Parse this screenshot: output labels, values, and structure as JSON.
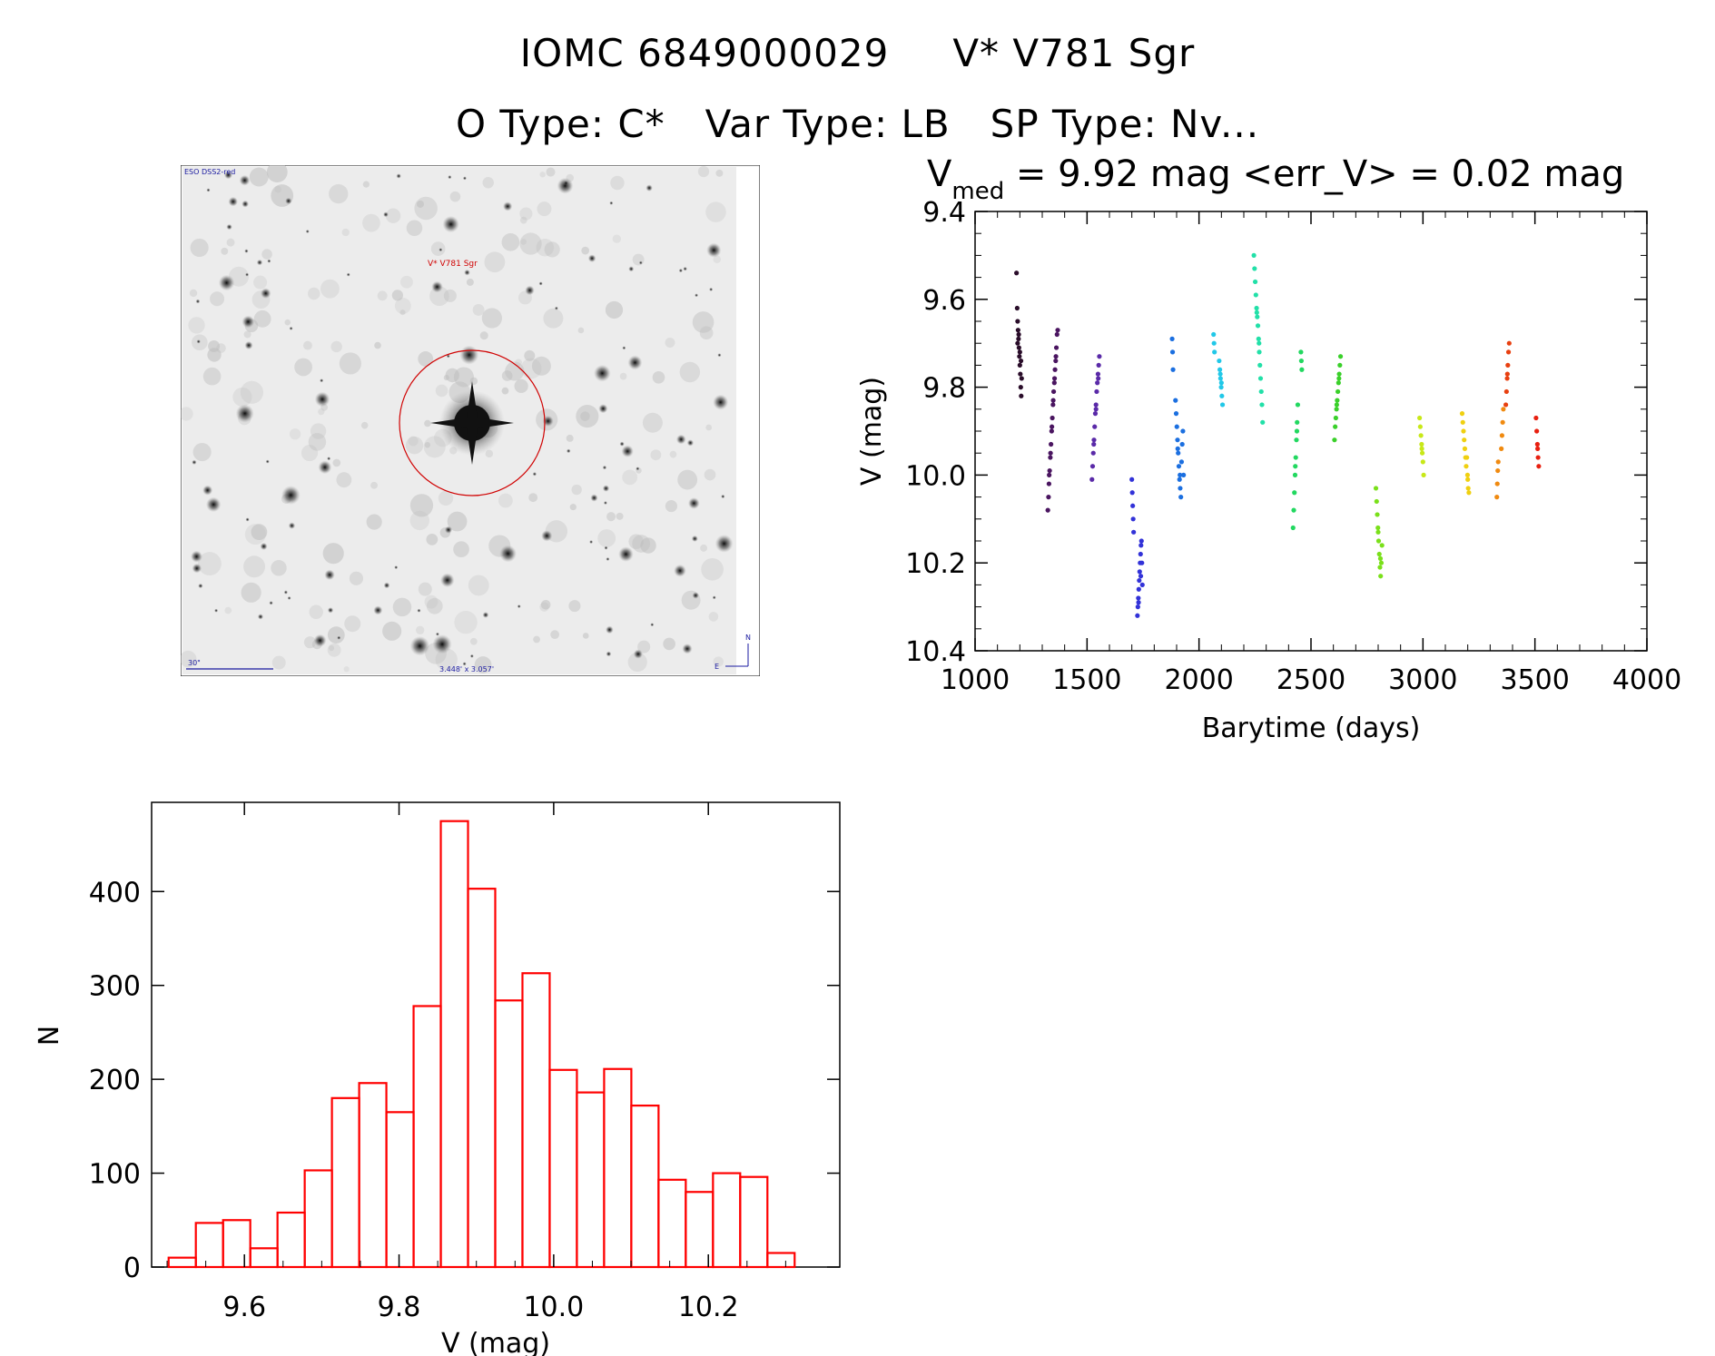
{
  "header": {
    "title_line1_a": "IOMC 6849000029",
    "title_line1_b": "V* V781 Sgr",
    "title_line2_a": "O Type: C*",
    "title_line2_b": "Var Type: LB",
    "title_line2_c": "SP Type: Nv..."
  },
  "finder": {
    "survey_label": "ESO DSS2-red",
    "object_label": "V* V781 Sgr",
    "scale_label": "30\"",
    "fov_label": "3.448' x 3.057'",
    "compass_n": "N",
    "compass_e": "E"
  },
  "chart_data": [
    {
      "type": "scatter",
      "title_prefix": "V",
      "title_sub": "med",
      "title_rest": " = 9.92 mag <err_V> = 0.02 mag",
      "xlabel": "Barytime (days)",
      "ylabel": "V (mag)",
      "xlim": [
        1000,
        4000
      ],
      "ylim": [
        10.4,
        9.4
      ],
      "y_inverted": true,
      "xticks": [
        "1000",
        "1500",
        "2000",
        "2500",
        "3000",
        "3500",
        "4000"
      ],
      "yticks": [
        "9.4",
        "9.6",
        "9.8",
        "10.0",
        "10.2",
        "10.4"
      ],
      "grid": false,
      "series": [
        {
          "color": "#2a0d2a",
          "points": [
            [
              1185,
              9.54
            ],
            [
              1188,
              9.62
            ],
            [
              1190,
              9.65
            ],
            [
              1192,
              9.67
            ],
            [
              1194,
              9.69
            ],
            [
              1196,
              9.71
            ],
            [
              1198,
              9.73
            ],
            [
              1200,
              9.75
            ],
            [
              1202,
              9.77
            ],
            [
              1204,
              9.8
            ],
            [
              1206,
              9.82
            ],
            [
              1208,
              9.78
            ],
            [
              1190,
              9.7
            ],
            [
              1195,
              9.68
            ],
            [
              1200,
              9.72
            ],
            [
              1205,
              9.74
            ]
          ]
        },
        {
          "color": "#4a1560",
          "points": [
            [
              1325,
              10.08
            ],
            [
              1328,
              10.05
            ],
            [
              1330,
              10.02
            ],
            [
              1333,
              9.99
            ],
            [
              1336,
              9.96
            ],
            [
              1339,
              9.93
            ],
            [
              1342,
              9.9
            ],
            [
              1345,
              9.87
            ],
            [
              1348,
              9.84
            ],
            [
              1351,
              9.81
            ],
            [
              1354,
              9.79
            ],
            [
              1357,
              9.76
            ],
            [
              1360,
              9.74
            ],
            [
              1363,
              9.71
            ],
            [
              1366,
              9.68
            ],
            [
              1369,
              9.67
            ],
            [
              1331,
              10.0
            ],
            [
              1337,
              9.95
            ],
            [
              1343,
              9.89
            ],
            [
              1349,
              9.83
            ],
            [
              1355,
              9.78
            ],
            [
              1361,
              9.73
            ]
          ]
        },
        {
          "color": "#5a2aa8",
          "points": [
            [
              1522,
              10.01
            ],
            [
              1525,
              9.98
            ],
            [
              1528,
              9.95
            ],
            [
              1531,
              9.92
            ],
            [
              1534,
              9.89
            ],
            [
              1537,
              9.86
            ],
            [
              1540,
              9.84
            ],
            [
              1543,
              9.81
            ],
            [
              1546,
              9.79
            ],
            [
              1549,
              9.77
            ],
            [
              1552,
              9.75
            ],
            [
              1555,
              9.73
            ],
            [
              1530,
              9.93
            ],
            [
              1540,
              9.85
            ],
            [
              1550,
              9.78
            ]
          ]
        },
        {
          "color": "#3232d8",
          "points": [
            [
              1700,
              10.01
            ],
            [
              1702,
              10.04
            ],
            [
              1704,
              10.07
            ],
            [
              1706,
              10.1
            ],
            [
              1708,
              10.13
            ],
            [
              1725,
              10.32
            ],
            [
              1727,
              10.3
            ],
            [
              1729,
              10.28
            ],
            [
              1731,
              10.26
            ],
            [
              1733,
              10.24
            ],
            [
              1735,
              10.22
            ],
            [
              1737,
              10.2
            ],
            [
              1739,
              10.18
            ],
            [
              1741,
              10.16
            ],
            [
              1743,
              10.15
            ],
            [
              1745,
              10.2
            ],
            [
              1747,
              10.25
            ],
            [
              1730,
              10.29
            ],
            [
              1740,
              10.23
            ]
          ]
        },
        {
          "color": "#1b6fe0",
          "points": [
            [
              1880,
              9.69
            ],
            [
              1882,
              9.72
            ],
            [
              1884,
              9.76
            ],
            [
              1895,
              9.83
            ],
            [
              1898,
              9.86
            ],
            [
              1901,
              9.89
            ],
            [
              1904,
              9.92
            ],
            [
              1907,
              9.95
            ],
            [
              1910,
              9.98
            ],
            [
              1913,
              10.01
            ],
            [
              1916,
              10.03
            ],
            [
              1919,
              10.05
            ],
            [
              1922,
              9.97
            ],
            [
              1925,
              9.93
            ],
            [
              1928,
              9.9
            ],
            [
              1931,
              10.0
            ],
            [
              1905,
              9.94
            ],
            [
              1915,
              10.0
            ]
          ]
        },
        {
          "color": "#22c8e8",
          "points": [
            [
              2065,
              9.68
            ],
            [
              2067,
              9.7
            ],
            [
              2069,
              9.72
            ],
            [
              2090,
              9.74
            ],
            [
              2093,
              9.76
            ],
            [
              2096,
              9.78
            ],
            [
              2099,
              9.8
            ],
            [
              2102,
              9.82
            ],
            [
              2105,
              9.84
            ],
            [
              2100,
              9.79
            ],
            [
              2095,
              9.77
            ]
          ]
        },
        {
          "color": "#22e0a8",
          "points": [
            [
              2245,
              9.5
            ],
            [
              2248,
              9.53
            ],
            [
              2251,
              9.56
            ],
            [
              2254,
              9.59
            ],
            [
              2257,
              9.62
            ],
            [
              2260,
              9.64
            ],
            [
              2263,
              9.66
            ],
            [
              2266,
              9.69
            ],
            [
              2269,
              9.72
            ],
            [
              2272,
              9.75
            ],
            [
              2275,
              9.78
            ],
            [
              2278,
              9.81
            ],
            [
              2281,
              9.84
            ],
            [
              2284,
              9.88
            ],
            [
              2258,
              9.63
            ],
            [
              2268,
              9.7
            ]
          ]
        },
        {
          "color": "#22d860",
          "points": [
            [
              2420,
              10.12
            ],
            [
              2423,
              10.08
            ],
            [
              2426,
              10.04
            ],
            [
              2429,
              10.0
            ],
            [
              2432,
              9.96
            ],
            [
              2435,
              9.92
            ],
            [
              2438,
              9.88
            ],
            [
              2441,
              9.84
            ],
            [
              2455,
              9.72
            ],
            [
              2457,
              9.74
            ],
            [
              2459,
              9.76
            ],
            [
              2430,
              9.98
            ],
            [
              2437,
              9.9
            ]
          ]
        },
        {
          "color": "#3ad02a",
          "points": [
            [
              2605,
              9.92
            ],
            [
              2608,
              9.89
            ],
            [
              2611,
              9.87
            ],
            [
              2614,
              9.85
            ],
            [
              2617,
              9.83
            ],
            [
              2620,
              9.81
            ],
            [
              2623,
              9.79
            ],
            [
              2626,
              9.77
            ],
            [
              2629,
              9.75
            ],
            [
              2632,
              9.73
            ],
            [
              2615,
              9.84
            ],
            [
              2625,
              9.78
            ]
          ]
        },
        {
          "color": "#7ae01a",
          "points": [
            [
              2790,
              10.03
            ],
            [
              2793,
              10.06
            ],
            [
              2796,
              10.09
            ],
            [
              2799,
              10.12
            ],
            [
              2802,
              10.15
            ],
            [
              2805,
              10.18
            ],
            [
              2808,
              10.21
            ],
            [
              2811,
              10.23
            ],
            [
              2814,
              10.2
            ],
            [
              2817,
              10.16
            ],
            [
              2800,
              10.13
            ],
            [
              2810,
              10.19
            ]
          ]
        },
        {
          "color": "#c8e818",
          "points": [
            [
              2985,
              9.87
            ],
            [
              2988,
              9.89
            ],
            [
              2991,
              9.91
            ],
            [
              2994,
              9.93
            ],
            [
              2997,
              9.95
            ],
            [
              3000,
              9.97
            ],
            [
              3003,
              10.0
            ],
            [
              2995,
              9.94
            ]
          ]
        },
        {
          "color": "#f0d010",
          "points": [
            [
              3175,
              9.86
            ],
            [
              3178,
              9.88
            ],
            [
              3181,
              9.9
            ],
            [
              3184,
              9.92
            ],
            [
              3187,
              9.94
            ],
            [
              3190,
              9.96
            ],
            [
              3193,
              9.98
            ],
            [
              3196,
              9.96
            ],
            [
              3199,
              10.0
            ],
            [
              3202,
              10.03
            ],
            [
              3205,
              10.04
            ],
            [
              3200,
              10.01
            ]
          ]
        },
        {
          "color": "#f08a10",
          "points": [
            [
              3330,
              10.05
            ],
            [
              3332,
              10.02
            ],
            [
              3334,
              9.99
            ],
            [
              3336,
              9.97
            ],
            [
              3350,
              9.94
            ],
            [
              3353,
              9.91
            ],
            [
              3356,
              9.88
            ],
            [
              3359,
              9.85
            ]
          ]
        },
        {
          "color": "#e84010",
          "points": [
            [
              3370,
              9.84
            ],
            [
              3373,
              9.81
            ],
            [
              3376,
              9.78
            ],
            [
              3379,
              9.75
            ],
            [
              3382,
              9.72
            ],
            [
              3385,
              9.7
            ],
            [
              3377,
              9.77
            ]
          ]
        },
        {
          "color": "#e82010",
          "points": [
            [
              3505,
              9.87
            ],
            [
              3508,
              9.9
            ],
            [
              3511,
              9.93
            ],
            [
              3514,
              9.96
            ],
            [
              3517,
              9.98
            ],
            [
              3512,
              9.94
            ]
          ]
        }
      ]
    },
    {
      "type": "bar",
      "xlabel": "V (mag)",
      "ylabel": "N",
      "xlim": [
        9.48,
        10.37
      ],
      "ylim": [
        0,
        495
      ],
      "xticks": [
        "9.6",
        "9.8",
        "10.0",
        "10.2"
      ],
      "yticks": [
        "0",
        "100",
        "200",
        "300",
        "400"
      ],
      "bin_start": 9.502,
      "bin_width": 0.0352,
      "values": [
        10,
        47,
        50,
        20,
        58,
        103,
        180,
        196,
        165,
        278,
        475,
        403,
        284,
        313,
        210,
        186,
        211,
        172,
        93,
        80,
        100,
        96,
        15
      ],
      "bar_color": "#ff0000"
    }
  ]
}
